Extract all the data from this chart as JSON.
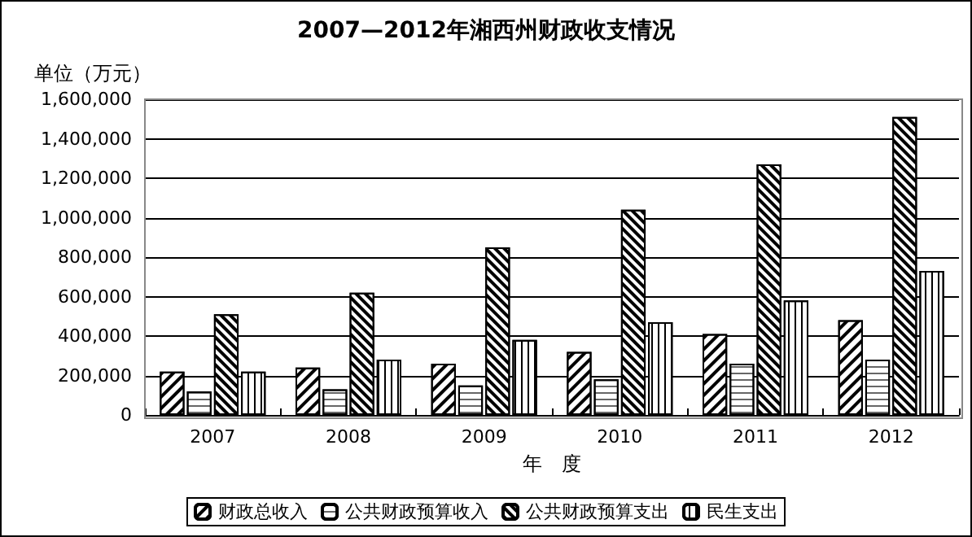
{
  "chart_data": {
    "type": "bar",
    "title": "2007—2012年湘西州财政收支情况",
    "ylabel": "单位（万元）",
    "xlabel": "年　度",
    "categories": [
      "2007",
      "2008",
      "2009",
      "2010",
      "2011",
      "2012"
    ],
    "series": [
      {
        "name": "财政总收入",
        "color": "#ffffff",
        "values": [
          220000,
          240000,
          260000,
          320000,
          410000,
          480000
        ]
      },
      {
        "name": "公共财政预算收入",
        "color": "#ffffff",
        "values": [
          120000,
          130000,
          150000,
          180000,
          260000,
          280000
        ]
      },
      {
        "name": "公共财政预算支出",
        "color": "#ffffff",
        "values": [
          510000,
          620000,
          850000,
          1040000,
          1270000,
          1510000
        ]
      },
      {
        "name": "民生支出",
        "color": "#ffffff",
        "values": [
          220000,
          280000,
          380000,
          470000,
          580000,
          730000
        ]
      }
    ],
    "ylim": [
      0,
      1600000
    ],
    "yticks": [
      0,
      {
        "value": 200000,
        "label": "200,000"
      },
      {
        "value": 400000,
        "label": "400,000"
      },
      {
        "value": 600000,
        "label": "600,000"
      },
      {
        "value": 800000,
        "label": "800,000"
      },
      {
        "value": 1000000,
        "label": "1,000,000"
      },
      {
        "value": 1200000,
        "label": "1,200,000"
      },
      {
        "value": 1400000,
        "label": "1,400,000"
      },
      {
        "value": 1600000,
        "label": "1,600,000"
      }
    ],
    "grid": "y",
    "legend": "bottom"
  }
}
